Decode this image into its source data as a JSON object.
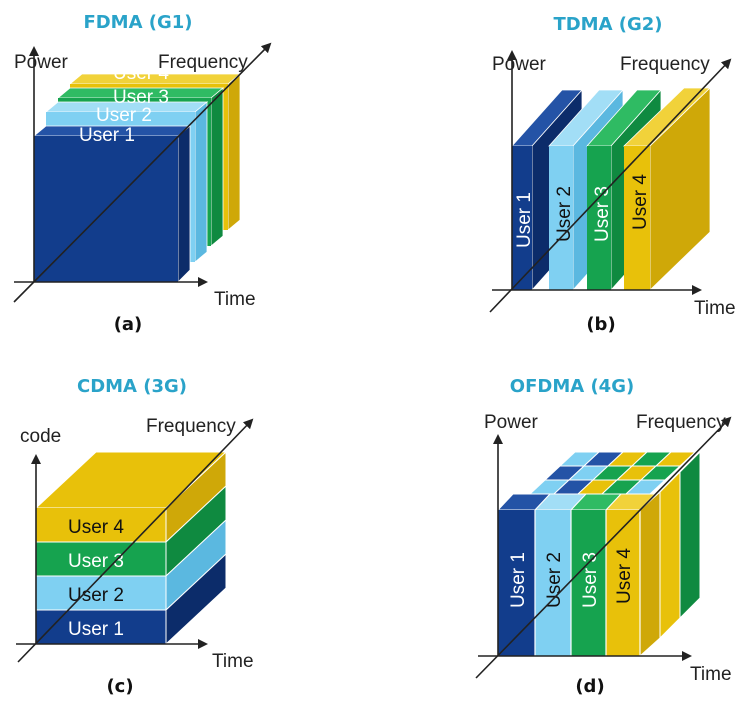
{
  "colors": {
    "title": "#2aa3c9",
    "user1": "#123d8c",
    "user2": "#7fd0f2",
    "user3": "#16a34f",
    "user4": "#e8c10a",
    "axis": "#222222"
  },
  "panels": {
    "a": {
      "title": "FDMA (G1)",
      "y_axis": "Power",
      "z_axis": "Frequency",
      "x_axis": "Time",
      "sublabel": "(a)",
      "users": [
        "User 1",
        "User 2",
        "User 3",
        "User 4"
      ]
    },
    "b": {
      "title": "TDMA (G2)",
      "y_axis": "Power",
      "z_axis": "Frequency",
      "x_axis": "Time",
      "sublabel": "(b)",
      "users": [
        "User 1",
        "User 2",
        "User 3",
        "User 4"
      ]
    },
    "c": {
      "title": "CDMA (3G)",
      "y_axis": "code",
      "z_axis": "Frequency",
      "x_axis": "Time",
      "sublabel": "(c)",
      "users": [
        "User 1",
        "User 2",
        "User 3",
        "User 4"
      ]
    },
    "d": {
      "title": "OFDMA (4G)",
      "y_axis": "Power",
      "z_axis": "Frequency",
      "x_axis": "Time",
      "sublabel": "(d)",
      "users": [
        "User 1",
        "User 2",
        "User 3",
        "User 4"
      ]
    }
  }
}
